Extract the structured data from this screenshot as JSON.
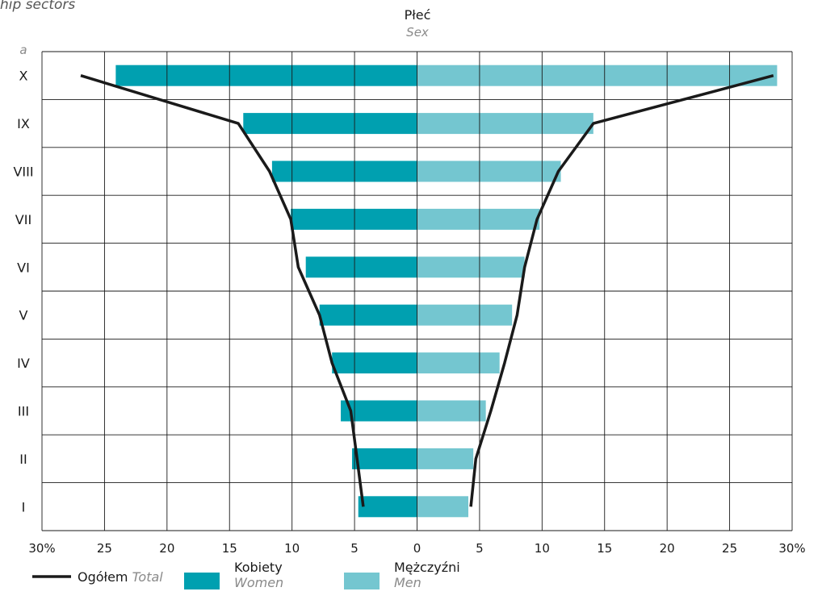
{
  "header": {
    "title_fragment": "hip sectors"
  },
  "chart_data": {
    "type": "bar",
    "orientation": "horizontal-population-pyramid",
    "title": "Płeć",
    "subtitle": "Sex",
    "ylabel": "a",
    "categories": [
      "I",
      "II",
      "III",
      "IV",
      "V",
      "VI",
      "VII",
      "VIII",
      "IX",
      "X"
    ],
    "x_ticks": [
      "30%",
      "25",
      "20",
      "15",
      "10",
      "5",
      "0",
      "5",
      "10",
      "15",
      "20",
      "25",
      "30%"
    ],
    "xlim": [
      -30,
      30
    ],
    "grid": true,
    "legend_position": "bottom",
    "series": [
      {
        "name": "Kobiety",
        "name_en": "Women",
        "side": "left",
        "color": "#00a0b0",
        "values": [
          4.7,
          5.2,
          6.1,
          6.8,
          7.8,
          8.9,
          10.1,
          11.6,
          13.9,
          24.1
        ]
      },
      {
        "name": "Mężczyźni",
        "name_en": "Men",
        "side": "right",
        "color": "#74c6d0",
        "values": [
          4.1,
          4.5,
          5.5,
          6.6,
          7.6,
          8.6,
          9.8,
          11.5,
          14.1,
          28.8
        ]
      },
      {
        "name": "Ogółem",
        "name_en": "Total",
        "type": "line",
        "color": "#1a1a1a",
        "left_values": [
          4.3,
          4.8,
          5.3,
          6.8,
          7.8,
          9.5,
          10.1,
          11.8,
          14.3,
          26.9
        ],
        "right_values": [
          4.3,
          4.7,
          5.9,
          7.0,
          8.0,
          8.6,
          9.6,
          11.3,
          14.1,
          28.5
        ]
      }
    ]
  },
  "legend": {
    "total_label": "Ogółem",
    "total_sub": "Total",
    "women_label": "Kobiety",
    "women_sub": "Women",
    "men_label": "Mężczyźni",
    "men_sub": "Men"
  }
}
